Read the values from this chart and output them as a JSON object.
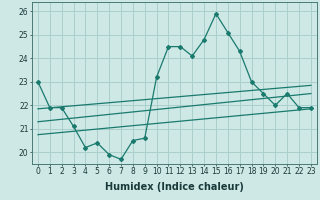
{
  "x": [
    0,
    1,
    2,
    3,
    4,
    5,
    6,
    7,
    8,
    9,
    10,
    11,
    12,
    13,
    14,
    15,
    16,
    17,
    18,
    19,
    20,
    21,
    22,
    23
  ],
  "y_main": [
    23.0,
    21.9,
    21.9,
    21.1,
    20.2,
    20.4,
    19.9,
    19.7,
    20.5,
    20.6,
    23.2,
    24.5,
    24.5,
    24.1,
    24.8,
    25.9,
    25.1,
    24.3,
    23.0,
    22.5,
    22.0,
    22.5,
    21.9,
    21.9
  ],
  "y_line1_start": 21.85,
  "y_line1_end": 22.85,
  "y_line2_start": 21.3,
  "y_line2_end": 22.5,
  "y_line3_start": 20.75,
  "y_line3_end": 21.85,
  "color_main": "#1a7a6e",
  "color_line": "#1a7a6e",
  "bg_color": "#cde8e5",
  "grid_color": "#aacfcc",
  "xlabel": "Humidex (Indice chaleur)",
  "ylim": [
    19.5,
    26.4
  ],
  "xlim": [
    -0.5,
    23.5
  ],
  "yticks": [
    20,
    21,
    22,
    23,
    24,
    25,
    26
  ],
  "xticks": [
    0,
    1,
    2,
    3,
    4,
    5,
    6,
    7,
    8,
    9,
    10,
    11,
    12,
    13,
    14,
    15,
    16,
    17,
    18,
    19,
    20,
    21,
    22,
    23
  ],
  "marker": "D",
  "markersize": 2.0,
  "linewidth": 0.9,
  "tick_fontsize": 5.5,
  "xlabel_fontsize": 7.0
}
